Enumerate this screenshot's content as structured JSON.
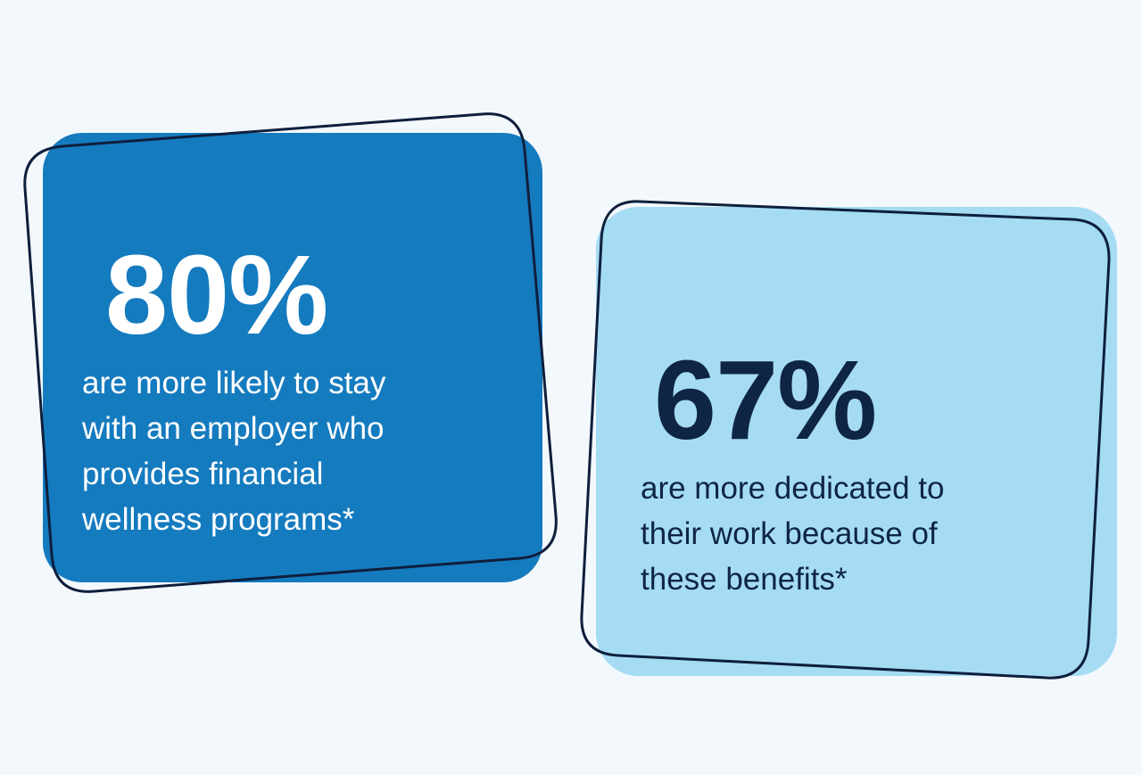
{
  "theme": {
    "background": "#f3f8fc",
    "card_primary": "#157bbf",
    "card_secondary": "#a5dcf4",
    "outline": "#0e1f3c",
    "text_light": "#ffffff",
    "text_dark": "#0f2544"
  },
  "stats": [
    {
      "value": "80%",
      "lines": [
        "are more likely to stay",
        "with an employer who",
        "provides financial",
        "wellness programs*"
      ]
    },
    {
      "value": "67%",
      "lines": [
        "are more dedicated to",
        "their work because of",
        "these benefits*"
      ]
    }
  ]
}
